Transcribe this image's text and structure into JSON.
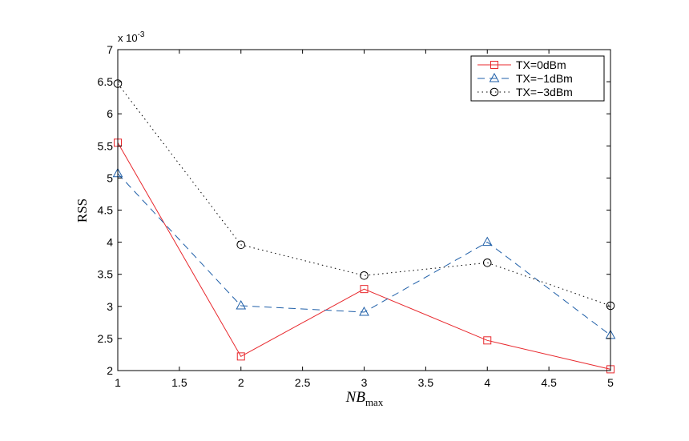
{
  "chart_data": {
    "type": "line",
    "xlabel": "NB",
    "xlabel_subscript": "max",
    "ylabel": "RSS",
    "y_exponent": "x 10",
    "y_exponent_power": "-3",
    "xlim": [
      1,
      5
    ],
    "ylim": [
      2,
      7
    ],
    "x_ticks": [
      "1",
      "1.5",
      "2",
      "2.5",
      "3",
      "3.5",
      "4",
      "4.5",
      "5"
    ],
    "y_ticks": [
      "2",
      "2.5",
      "3",
      "3.5",
      "4",
      "4.5",
      "5",
      "5.5",
      "6",
      "6.5",
      "7"
    ],
    "grid": false,
    "legend_position": "top-right",
    "x": [
      1,
      2,
      3,
      4,
      5
    ],
    "series": [
      {
        "name": "TX=0dBm",
        "values": [
          5.55,
          2.22,
          3.27,
          2.47,
          2.02
        ],
        "color": "#e8282d",
        "dash": "solid",
        "marker": "square"
      },
      {
        "name": "TX=−1dBm",
        "values": [
          5.07,
          3.01,
          2.91,
          4.0,
          2.55
        ],
        "color": "#1f5fa8",
        "dash": "dashed",
        "marker": "triangle"
      },
      {
        "name": "TX=−3dBm",
        "values": [
          6.47,
          3.96,
          3.48,
          3.68,
          3.01
        ],
        "color": "#000000",
        "dash": "dotted",
        "marker": "circle"
      }
    ]
  }
}
